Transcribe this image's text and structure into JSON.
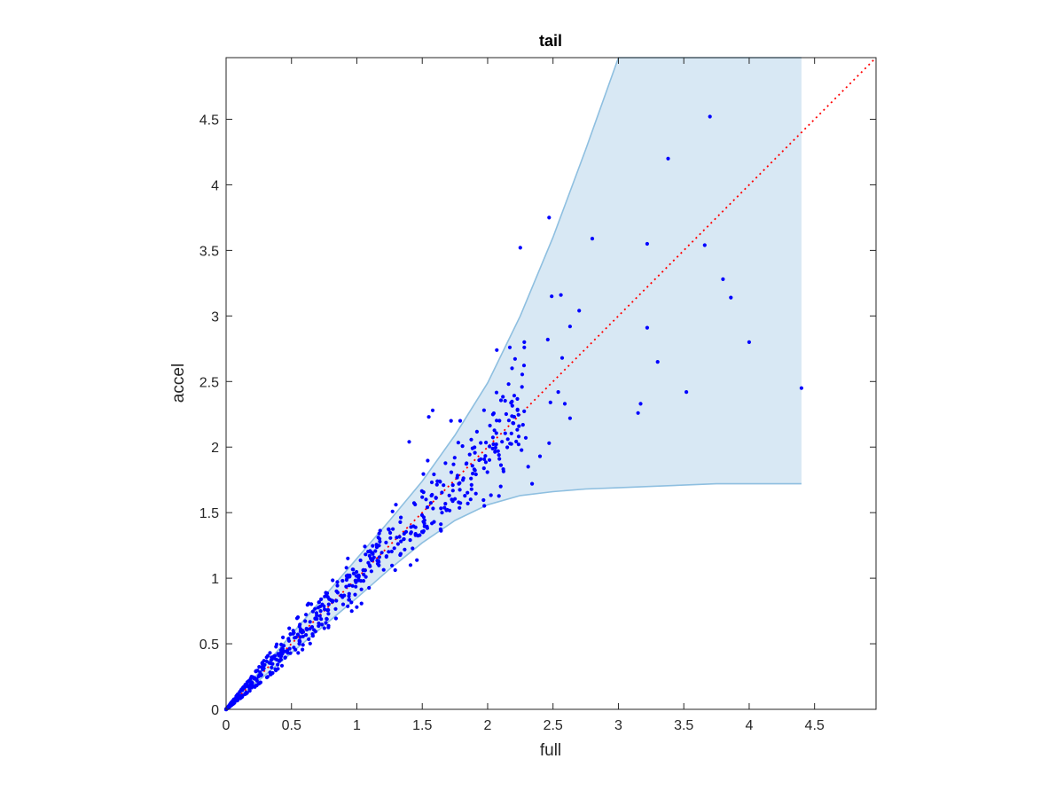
{
  "chart_data": {
    "type": "scatter",
    "title": "tail",
    "xlabel": "full",
    "ylabel": "accel",
    "xlim": [
      0,
      4.97
    ],
    "ylim": [
      0,
      4.97
    ],
    "xticks": [
      "0",
      "0.5",
      "1",
      "1.5",
      "2",
      "2.5",
      "3",
      "3.5",
      "4",
      "4.5"
    ],
    "yticks": [
      "0",
      "0.5",
      "1",
      "1.5",
      "2",
      "2.5",
      "3",
      "3.5",
      "4",
      "4.5"
    ],
    "grid": false,
    "colors": {
      "points": "#0000ff",
      "band_fill": "#d8e8f4",
      "band_edge": "#8ebfe0",
      "reference": "#ff0000"
    },
    "reference_line": {
      "style": "dotted",
      "x": [
        0,
        4.97
      ],
      "y": [
        0,
        4.97
      ]
    },
    "band": {
      "x": [
        0,
        0.25,
        0.5,
        0.75,
        1.0,
        1.25,
        1.5,
        1.75,
        2.0,
        2.25,
        2.5,
        2.75,
        3.0,
        3.25,
        3.5,
        3.75,
        4.0,
        4.25,
        4.4
      ],
      "upper": [
        0,
        0.28,
        0.57,
        0.86,
        1.15,
        1.44,
        1.74,
        2.09,
        2.49,
        3.0,
        3.6,
        4.27,
        4.97,
        4.97,
        4.97,
        4.97,
        4.97,
        4.97,
        4.97
      ],
      "lower": [
        0,
        0.22,
        0.43,
        0.64,
        0.85,
        1.07,
        1.27,
        1.44,
        1.56,
        1.63,
        1.66,
        1.68,
        1.69,
        1.7,
        1.71,
        1.72,
        1.72,
        1.72,
        1.72
      ]
    },
    "points_explicit": [
      [
        3.7,
        4.52
      ],
      [
        3.38,
        4.2
      ],
      [
        2.47,
        3.75
      ],
      [
        2.25,
        3.52
      ],
      [
        2.8,
        3.59
      ],
      [
        3.22,
        3.55
      ],
      [
        3.66,
        3.54
      ],
      [
        3.8,
        3.28
      ],
      [
        3.86,
        3.14
      ],
      [
        2.49,
        3.15
      ],
      [
        2.56,
        3.16
      ],
      [
        2.7,
        3.04
      ],
      [
        2.63,
        2.92
      ],
      [
        3.22,
        2.91
      ],
      [
        4.0,
        2.8
      ],
      [
        2.28,
        2.8
      ],
      [
        2.28,
        2.76
      ],
      [
        2.46,
        2.82
      ],
      [
        2.17,
        2.76
      ],
      [
        2.07,
        2.74
      ],
      [
        3.3,
        2.65
      ],
      [
        2.57,
        2.68
      ],
      [
        2.16,
        2.48
      ],
      [
        3.52,
        2.42
      ],
      [
        4.4,
        2.45
      ],
      [
        2.54,
        2.42
      ],
      [
        2.48,
        2.34
      ],
      [
        2.59,
        2.33
      ],
      [
        3.17,
        2.33
      ],
      [
        3.15,
        2.26
      ],
      [
        2.63,
        2.22
      ],
      [
        1.58,
        2.28
      ],
      [
        1.55,
        2.23
      ],
      [
        1.79,
        2.2
      ],
      [
        1.72,
        2.2
      ],
      [
        2.47,
        2.03
      ],
      [
        1.4,
        2.04
      ],
      [
        2.1,
        1.7
      ],
      [
        2.34,
        1.72
      ],
      [
        2.31,
        1.85
      ],
      [
        2.4,
        1.93
      ],
      [
        2.27,
        2.17
      ]
    ],
    "points_cloud": {
      "x_range": [
        0,
        2.3
      ],
      "count": 600,
      "note": "dense cluster of points following the reference line with spread growing as x increases"
    }
  }
}
